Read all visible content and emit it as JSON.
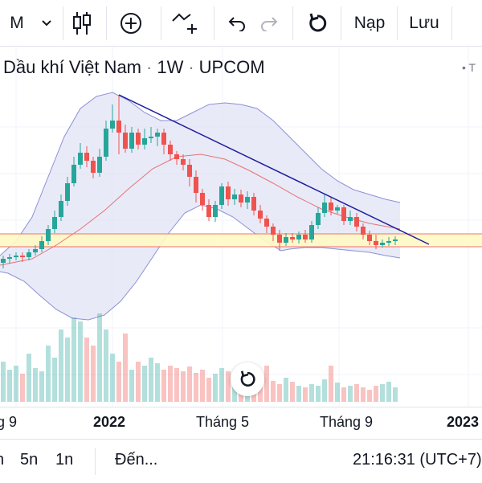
{
  "toolbar": {
    "interval_letter": "M",
    "undo_icon": "undo-icon",
    "redo_icon": "redo-icon",
    "save_label": "Lưu",
    "load_label": "Nạp"
  },
  "legend": {
    "name": "Dầu khí Việt Nam",
    "interval": "1W",
    "exchange": "UPCOM",
    "flag": "T"
  },
  "xaxis": {
    "labels": [
      "g 9",
      "2022",
      "Tháng 5",
      "Tháng 9",
      "2023"
    ]
  },
  "bottombar": {
    "range_1": "5n",
    "range_2": "1n",
    "goto_label": "Đến...",
    "clock": "21:16:31 (UTC+7)"
  },
  "colors": {
    "up": "#26a69a",
    "down": "#ef5350",
    "bb_fill": "#d7d8f0",
    "bb_line": "#8c90d6",
    "trendline": "#1e1e9e",
    "zone_fill": "#fff9c4",
    "zone_line": "#f07070"
  }
}
